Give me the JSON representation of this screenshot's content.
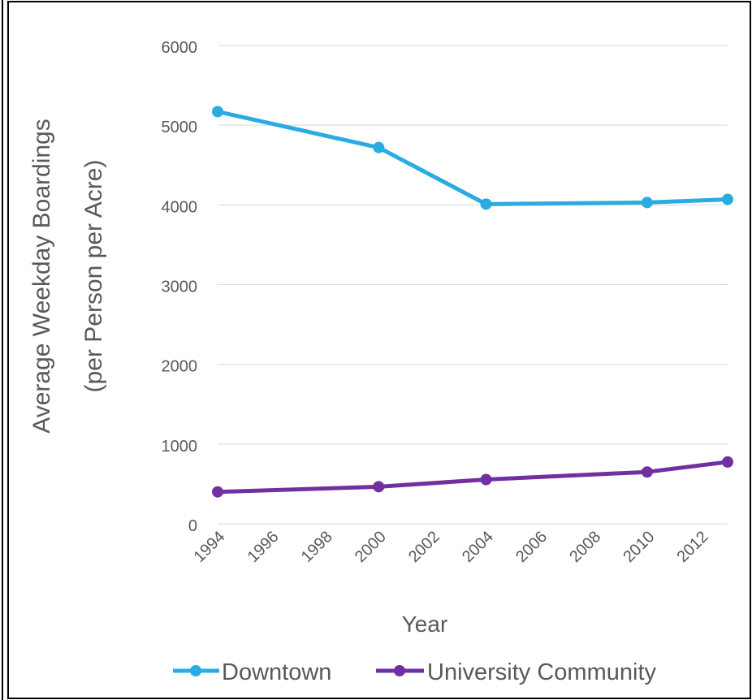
{
  "chart_data": {
    "type": "line",
    "ylabel": "Average Weekday Boardings",
    "ylabel2": "(per Person per Acre)",
    "xlabel": "Year",
    "ylim": [
      0,
      6000
    ],
    "yticks": [
      0,
      1000,
      2000,
      3000,
      4000,
      5000,
      6000
    ],
    "xlim": [
      1994,
      2013
    ],
    "xticks": [
      1994,
      1996,
      1998,
      2000,
      2002,
      2004,
      2006,
      2008,
      2010,
      2012
    ],
    "grid": true,
    "legend_position": "bottom",
    "series": [
      {
        "name": "Downtown",
        "color": "#2AABE2",
        "points": [
          [
            1994,
            5170
          ],
          [
            2000,
            4720
          ],
          [
            2004,
            4010
          ],
          [
            2010,
            4030
          ],
          [
            2013,
            4070
          ]
        ]
      },
      {
        "name": "University Community",
        "color": "#7030A0",
        "points": [
          [
            1994,
            400
          ],
          [
            2000,
            465
          ],
          [
            2004,
            555
          ],
          [
            2010,
            650
          ],
          [
            2013,
            775
          ]
        ]
      }
    ]
  }
}
